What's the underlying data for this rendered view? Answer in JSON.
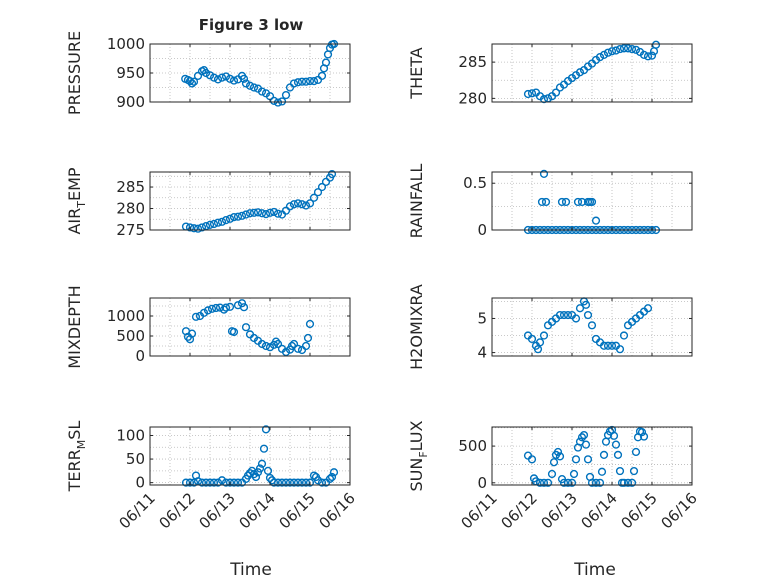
{
  "figure": {
    "title": "Figure 3 low"
  },
  "colors": {
    "marker": "#0072BD",
    "axis": "#262626",
    "grid": "#b8b8b8",
    "background": "#ffffff"
  },
  "chart_data": [
    {
      "type": "scatter",
      "id": "pressure",
      "ylabel": "PRESSURE",
      "ylim": [
        900,
        1000
      ],
      "yticks": [
        900,
        950,
        1000
      ],
      "xlim": [
        0,
        5
      ],
      "grid": true,
      "show_xtick_labels": false,
      "title": "Figure 3 low",
      "points": [
        [
          0.88,
          940
        ],
        [
          0.95,
          938
        ],
        [
          1.0,
          936
        ],
        [
          1.05,
          932
        ],
        [
          1.1,
          935
        ],
        [
          1.2,
          945
        ],
        [
          1.3,
          953
        ],
        [
          1.35,
          955
        ],
        [
          1.4,
          950
        ],
        [
          1.5,
          946
        ],
        [
          1.6,
          942
        ],
        [
          1.7,
          939
        ],
        [
          1.8,
          942
        ],
        [
          1.9,
          944
        ],
        [
          2.0,
          940
        ],
        [
          2.1,
          937
        ],
        [
          2.2,
          939
        ],
        [
          2.3,
          945
        ],
        [
          2.35,
          940
        ],
        [
          2.4,
          932
        ],
        [
          2.5,
          928
        ],
        [
          2.6,
          925
        ],
        [
          2.7,
          923
        ],
        [
          2.8,
          918
        ],
        [
          2.9,
          915
        ],
        [
          3.0,
          910
        ],
        [
          3.1,
          902
        ],
        [
          3.2,
          899
        ],
        [
          3.3,
          901
        ],
        [
          3.4,
          912
        ],
        [
          3.5,
          925
        ],
        [
          3.6,
          932
        ],
        [
          3.7,
          934
        ],
        [
          3.8,
          935
        ],
        [
          3.9,
          935
        ],
        [
          4.0,
          936
        ],
        [
          4.1,
          936
        ],
        [
          4.2,
          938
        ],
        [
          4.3,
          945
        ],
        [
          4.35,
          958
        ],
        [
          4.4,
          968
        ],
        [
          4.45,
          982
        ],
        [
          4.5,
          993
        ],
        [
          4.55,
          999
        ],
        [
          4.6,
          1000
        ]
      ]
    },
    {
      "type": "scatter",
      "id": "theta",
      "ylabel": "THETA",
      "ylim": [
        279.5,
        287.5
      ],
      "yticks": [
        280,
        285
      ],
      "xlim": [
        0,
        5
      ],
      "grid": true,
      "show_xtick_labels": false,
      "points": [
        [
          0.9,
          280.6
        ],
        [
          1.0,
          280.7
        ],
        [
          1.1,
          280.8
        ],
        [
          1.2,
          280.3
        ],
        [
          1.3,
          279.9
        ],
        [
          1.4,
          280.0
        ],
        [
          1.5,
          280.3
        ],
        [
          1.6,
          280.8
        ],
        [
          1.7,
          281.5
        ],
        [
          1.8,
          281.9
        ],
        [
          1.9,
          282.4
        ],
        [
          2.0,
          282.8
        ],
        [
          2.1,
          283.2
        ],
        [
          2.2,
          283.6
        ],
        [
          2.3,
          283.9
        ],
        [
          2.4,
          284.4
        ],
        [
          2.5,
          284.8
        ],
        [
          2.6,
          285.3
        ],
        [
          2.7,
          285.7
        ],
        [
          2.8,
          286.0
        ],
        [
          2.9,
          286.3
        ],
        [
          3.0,
          286.5
        ],
        [
          3.1,
          286.6
        ],
        [
          3.2,
          286.8
        ],
        [
          3.3,
          286.9
        ],
        [
          3.4,
          286.9
        ],
        [
          3.5,
          286.8
        ],
        [
          3.6,
          286.7
        ],
        [
          3.7,
          286.4
        ],
        [
          3.8,
          286.0
        ],
        [
          3.9,
          285.8
        ],
        [
          4.0,
          285.9
        ],
        [
          4.05,
          286.5
        ],
        [
          4.1,
          287.4
        ]
      ]
    },
    {
      "type": "scatter",
      "id": "air_temp",
      "ylabel": "AIR",
      "ylabel_sub": "T",
      "ylabel_tail": "EMP",
      "ylim": [
        275,
        288.5
      ],
      "yticks": [
        275,
        280,
        285
      ],
      "xlim": [
        0,
        5
      ],
      "grid": true,
      "show_xtick_labels": false,
      "points": [
        [
          0.9,
          275.8
        ],
        [
          1.0,
          275.6
        ],
        [
          1.1,
          275.4
        ],
        [
          1.2,
          275.3
        ],
        [
          1.3,
          275.6
        ],
        [
          1.4,
          275.9
        ],
        [
          1.5,
          276.2
        ],
        [
          1.6,
          276.4
        ],
        [
          1.7,
          276.7
        ],
        [
          1.8,
          276.9
        ],
        [
          1.9,
          277.3
        ],
        [
          2.0,
          277.6
        ],
        [
          2.1,
          278.0
        ],
        [
          2.2,
          278.1
        ],
        [
          2.3,
          278.3
        ],
        [
          2.4,
          278.6
        ],
        [
          2.5,
          278.9
        ],
        [
          2.6,
          279.0
        ],
        [
          2.7,
          279.1
        ],
        [
          2.8,
          278.9
        ],
        [
          2.9,
          278.7
        ],
        [
          3.0,
          279.0
        ],
        [
          3.1,
          279.2
        ],
        [
          3.2,
          278.8
        ],
        [
          3.3,
          278.6
        ],
        [
          3.4,
          279.5
        ],
        [
          3.5,
          280.5
        ],
        [
          3.6,
          281.0
        ],
        [
          3.7,
          281.2
        ],
        [
          3.8,
          281.0
        ],
        [
          3.9,
          280.7
        ],
        [
          4.0,
          281.2
        ],
        [
          4.1,
          282.5
        ],
        [
          4.2,
          283.8
        ],
        [
          4.3,
          285.0
        ],
        [
          4.4,
          286.2
        ],
        [
          4.5,
          287.2
        ],
        [
          4.55,
          288.0
        ]
      ]
    },
    {
      "type": "scatter",
      "id": "rainfall",
      "ylabel": "RAINFALL",
      "ylim": [
        0,
        0.62
      ],
      "yticks": [
        0,
        0.5
      ],
      "xlim": [
        0,
        5
      ],
      "grid": true,
      "show_xtick_labels": false,
      "points": [
        [
          0.9,
          0
        ],
        [
          1.0,
          0
        ],
        [
          1.1,
          0
        ],
        [
          1.2,
          0
        ],
        [
          1.3,
          0
        ],
        [
          1.4,
          0
        ],
        [
          1.5,
          0
        ],
        [
          1.6,
          0
        ],
        [
          1.7,
          0
        ],
        [
          1.8,
          0
        ],
        [
          1.9,
          0
        ],
        [
          2.0,
          0
        ],
        [
          2.1,
          0
        ],
        [
          2.2,
          0
        ],
        [
          2.3,
          0
        ],
        [
          2.4,
          0
        ],
        [
          2.5,
          0
        ],
        [
          2.6,
          0
        ],
        [
          2.7,
          0
        ],
        [
          2.8,
          0
        ],
        [
          2.9,
          0
        ],
        [
          3.0,
          0
        ],
        [
          3.1,
          0
        ],
        [
          3.2,
          0
        ],
        [
          3.3,
          0
        ],
        [
          3.4,
          0
        ],
        [
          3.5,
          0
        ],
        [
          3.6,
          0
        ],
        [
          3.7,
          0
        ],
        [
          3.8,
          0
        ],
        [
          3.9,
          0
        ],
        [
          4.0,
          0
        ],
        [
          4.1,
          0
        ],
        [
          1.25,
          0.3
        ],
        [
          1.3,
          0.6
        ],
        [
          1.35,
          0.3
        ],
        [
          1.75,
          0.3
        ],
        [
          1.85,
          0.3
        ],
        [
          2.15,
          0.3
        ],
        [
          2.25,
          0.3
        ],
        [
          2.4,
          0.3
        ],
        [
          2.45,
          0.3
        ],
        [
          2.5,
          0.3
        ],
        [
          2.6,
          0.1
        ]
      ]
    },
    {
      "type": "scatter",
      "id": "mixdepth",
      "ylabel": "MIXDEPTH",
      "ylim": [
        0,
        1450
      ],
      "yticks": [
        0,
        500,
        1000
      ],
      "xlim": [
        0,
        5
      ],
      "grid": true,
      "show_xtick_labels": false,
      "points": [
        [
          0.9,
          620
        ],
        [
          0.95,
          480
        ],
        [
          1.0,
          420
        ],
        [
          1.05,
          560
        ],
        [
          1.15,
          980
        ],
        [
          1.25,
          1000
        ],
        [
          1.35,
          1080
        ],
        [
          1.45,
          1140
        ],
        [
          1.55,
          1180
        ],
        [
          1.65,
          1200
        ],
        [
          1.75,
          1210
        ],
        [
          1.85,
          1160
        ],
        [
          1.9,
          1210
        ],
        [
          2.0,
          1230
        ],
        [
          2.05,
          620
        ],
        [
          2.1,
          600
        ],
        [
          2.2,
          1270
        ],
        [
          2.3,
          1320
        ],
        [
          2.35,
          1220
        ],
        [
          2.4,
          720
        ],
        [
          2.5,
          540
        ],
        [
          2.6,
          450
        ],
        [
          2.7,
          380
        ],
        [
          2.8,
          300
        ],
        [
          2.9,
          250
        ],
        [
          3.0,
          220
        ],
        [
          3.1,
          280
        ],
        [
          3.15,
          360
        ],
        [
          3.2,
          300
        ],
        [
          3.3,
          180
        ],
        [
          3.4,
          100
        ],
        [
          3.5,
          160
        ],
        [
          3.55,
          250
        ],
        [
          3.6,
          300
        ],
        [
          3.7,
          180
        ],
        [
          3.8,
          150
        ],
        [
          3.9,
          250
        ],
        [
          3.95,
          450
        ],
        [
          4.0,
          800
        ]
      ]
    },
    {
      "type": "scatter",
      "id": "h2omixra",
      "ylabel": "H2OMIXRA",
      "ylim": [
        3.9,
        5.6
      ],
      "yticks": [
        4,
        5
      ],
      "xlim": [
        0,
        5
      ],
      "grid": true,
      "show_xtick_labels": false,
      "points": [
        [
          0.9,
          4.5
        ],
        [
          1.0,
          4.4
        ],
        [
          1.1,
          4.2
        ],
        [
          1.15,
          4.1
        ],
        [
          1.2,
          4.3
        ],
        [
          1.3,
          4.5
        ],
        [
          1.4,
          4.8
        ],
        [
          1.5,
          4.9
        ],
        [
          1.6,
          5.0
        ],
        [
          1.7,
          5.1
        ],
        [
          1.8,
          5.1
        ],
        [
          1.9,
          5.1
        ],
        [
          2.0,
          5.1
        ],
        [
          2.1,
          5.0
        ],
        [
          2.2,
          5.3
        ],
        [
          2.3,
          5.5
        ],
        [
          2.35,
          5.4
        ],
        [
          2.4,
          5.1
        ],
        [
          2.5,
          4.8
        ],
        [
          2.6,
          4.4
        ],
        [
          2.7,
          4.3
        ],
        [
          2.8,
          4.2
        ],
        [
          2.9,
          4.2
        ],
        [
          3.0,
          4.2
        ],
        [
          3.1,
          4.2
        ],
        [
          3.2,
          4.1
        ],
        [
          3.3,
          4.5
        ],
        [
          3.4,
          4.8
        ],
        [
          3.5,
          4.9
        ],
        [
          3.6,
          5.0
        ],
        [
          3.7,
          5.1
        ],
        [
          3.8,
          5.2
        ],
        [
          3.9,
          5.3
        ]
      ]
    },
    {
      "type": "scatter",
      "id": "terr_msl",
      "ylabel": "TERR",
      "ylabel_sub": "M",
      "ylabel_tail": "SL",
      "ylim": [
        -5,
        118
      ],
      "yticks": [
        0,
        50,
        100
      ],
      "xlim": [
        0,
        5
      ],
      "grid": true,
      "show_xtick_labels": true,
      "points": [
        [
          0.9,
          0
        ],
        [
          1.0,
          0
        ],
        [
          1.1,
          0
        ],
        [
          1.15,
          15
        ],
        [
          1.2,
          3
        ],
        [
          1.3,
          0
        ],
        [
          1.4,
          0
        ],
        [
          1.5,
          0
        ],
        [
          1.6,
          0
        ],
        [
          1.7,
          0
        ],
        [
          1.8,
          5
        ],
        [
          1.9,
          0
        ],
        [
          2.0,
          0
        ],
        [
          2.1,
          0
        ],
        [
          2.2,
          0
        ],
        [
          2.3,
          0
        ],
        [
          2.4,
          8
        ],
        [
          2.45,
          15
        ],
        [
          2.5,
          20
        ],
        [
          2.55,
          25
        ],
        [
          2.6,
          18
        ],
        [
          2.65,
          12
        ],
        [
          2.7,
          22
        ],
        [
          2.75,
          30
        ],
        [
          2.8,
          40
        ],
        [
          2.85,
          72
        ],
        [
          2.9,
          113
        ],
        [
          2.95,
          25
        ],
        [
          3.0,
          10
        ],
        [
          3.05,
          5
        ],
        [
          3.1,
          0
        ],
        [
          3.2,
          0
        ],
        [
          3.3,
          0
        ],
        [
          3.4,
          0
        ],
        [
          3.5,
          0
        ],
        [
          3.6,
          0
        ],
        [
          3.7,
          0
        ],
        [
          3.8,
          0
        ],
        [
          3.9,
          0
        ],
        [
          4.0,
          0
        ],
        [
          4.1,
          15
        ],
        [
          4.15,
          12
        ],
        [
          4.2,
          5
        ],
        [
          4.3,
          0
        ],
        [
          4.4,
          0
        ],
        [
          4.5,
          8
        ],
        [
          4.55,
          12
        ],
        [
          4.6,
          22
        ]
      ]
    },
    {
      "type": "scatter",
      "id": "sun_flux",
      "ylabel": "SUN",
      "ylabel_sub": "F",
      "ylabel_tail": "LUX",
      "ylim": [
        -30,
        760
      ],
      "yticks": [
        0,
        500
      ],
      "xlim": [
        0,
        5
      ],
      "grid": true,
      "show_xtick_labels": true,
      "points": [
        [
          0.9,
          370
        ],
        [
          1.0,
          320
        ],
        [
          1.05,
          60
        ],
        [
          1.1,
          20
        ],
        [
          1.2,
          0
        ],
        [
          1.3,
          0
        ],
        [
          1.4,
          0
        ],
        [
          1.5,
          120
        ],
        [
          1.55,
          280
        ],
        [
          1.6,
          380
        ],
        [
          1.65,
          420
        ],
        [
          1.7,
          360
        ],
        [
          1.75,
          50
        ],
        [
          1.8,
          0
        ],
        [
          1.9,
          0
        ],
        [
          2.0,
          0
        ],
        [
          2.05,
          120
        ],
        [
          2.1,
          320
        ],
        [
          2.15,
          480
        ],
        [
          2.2,
          560
        ],
        [
          2.25,
          620
        ],
        [
          2.3,
          650
        ],
        [
          2.35,
          520
        ],
        [
          2.4,
          320
        ],
        [
          2.45,
          80
        ],
        [
          2.5,
          0
        ],
        [
          2.6,
          0
        ],
        [
          2.7,
          0
        ],
        [
          2.75,
          150
        ],
        [
          2.8,
          380
        ],
        [
          2.85,
          560
        ],
        [
          2.9,
          650
        ],
        [
          2.95,
          700
        ],
        [
          3.0,
          720
        ],
        [
          3.05,
          640
        ],
        [
          3.1,
          520
        ],
        [
          3.15,
          380
        ],
        [
          3.2,
          160
        ],
        [
          3.25,
          0
        ],
        [
          3.3,
          0
        ],
        [
          3.4,
          0
        ],
        [
          3.5,
          0
        ],
        [
          3.55,
          160
        ],
        [
          3.6,
          420
        ],
        [
          3.65,
          620
        ],
        [
          3.7,
          700
        ],
        [
          3.75,
          690
        ],
        [
          3.8,
          630
        ]
      ]
    }
  ],
  "x_axis": {
    "label": "Time",
    "ticks": [
      {
        "value": 0,
        "label": "06/11"
      },
      {
        "value": 1,
        "label": "06/12"
      },
      {
        "value": 2,
        "label": "06/13"
      },
      {
        "value": 3,
        "label": "06/14"
      },
      {
        "value": 4,
        "label": "06/15"
      },
      {
        "value": 5,
        "label": "06/16"
      }
    ]
  }
}
